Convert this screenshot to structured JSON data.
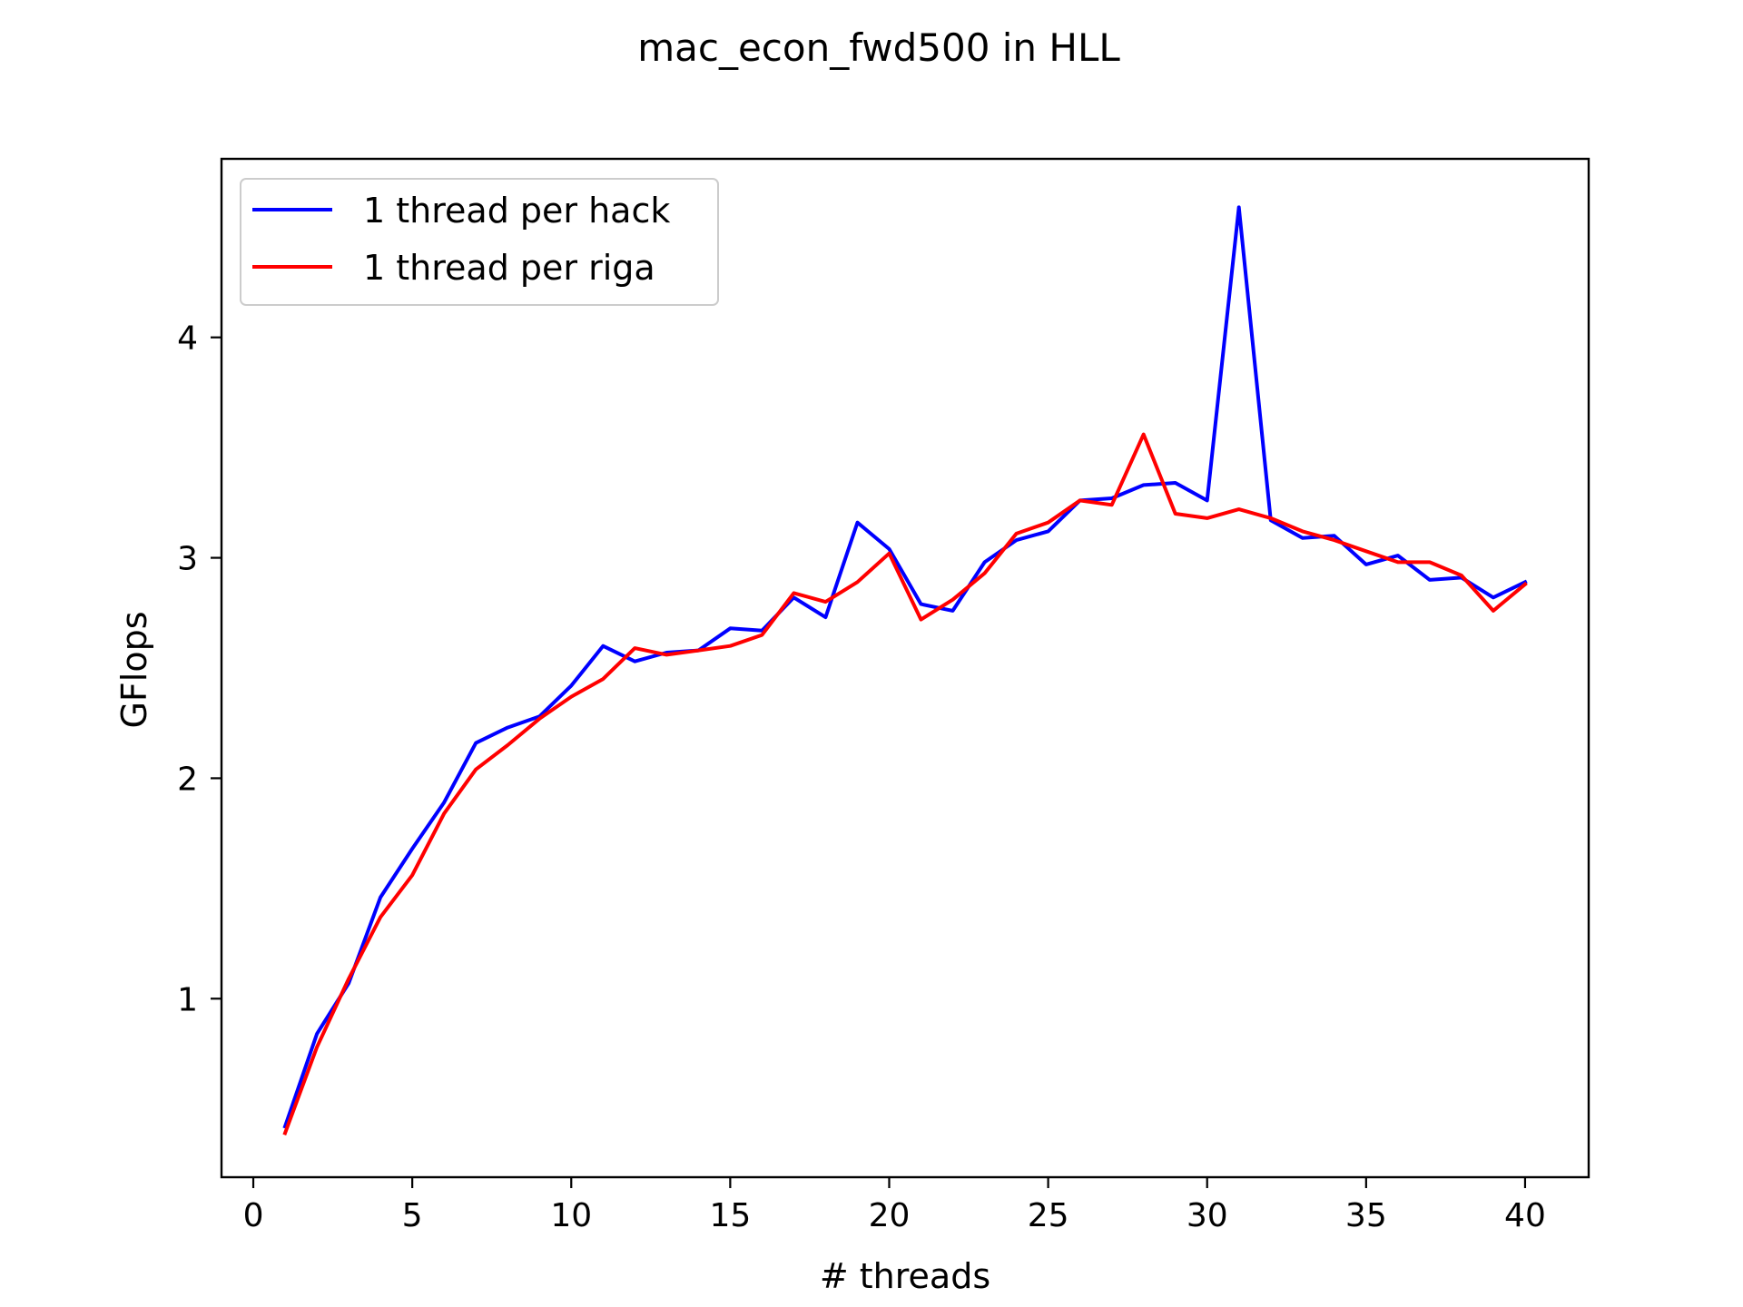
{
  "chart_data": {
    "type": "line",
    "title": "mac_econ_fwd500 in HLL",
    "xlabel": "# threads",
    "ylabel": "GFlops",
    "xlim": [
      -1,
      42
    ],
    "ylim": [
      0.19,
      4.81
    ],
    "xticks": [
      0,
      5,
      10,
      15,
      20,
      25,
      30,
      35,
      40
    ],
    "xtick_labels": [
      "0",
      "5",
      "10",
      "15",
      "20",
      "25",
      "30",
      "35",
      "40"
    ],
    "yticks": [
      1,
      2,
      3,
      4
    ],
    "ytick_labels": [
      "1",
      "2",
      "3",
      "4"
    ],
    "grid": false,
    "legend": "top-left",
    "x": [
      1,
      2,
      3,
      4,
      5,
      6,
      7,
      8,
      9,
      10,
      11,
      12,
      13,
      14,
      15,
      16,
      17,
      18,
      19,
      20,
      21,
      22,
      23,
      24,
      25,
      26,
      27,
      28,
      29,
      30,
      31,
      32,
      33,
      34,
      35,
      36,
      37,
      38,
      39,
      40
    ],
    "series": [
      {
        "name": "1 thread per hack",
        "color": "#0000ff",
        "values": [
          0.42,
          0.84,
          1.07,
          1.46,
          1.68,
          1.89,
          2.16,
          2.23,
          2.28,
          2.42,
          2.6,
          2.53,
          2.57,
          2.58,
          2.68,
          2.67,
          2.82,
          2.73,
          3.16,
          3.04,
          2.79,
          2.76,
          2.98,
          3.08,
          3.12,
          3.26,
          3.27,
          3.33,
          3.34,
          3.26,
          4.59,
          3.17,
          3.09,
          3.1,
          2.97,
          3.01,
          2.9,
          2.91,
          2.82,
          2.89
        ]
      },
      {
        "name": "1 thread per riga",
        "color": "#ff0000",
        "values": [
          0.39,
          0.78,
          1.09,
          1.37,
          1.56,
          1.84,
          2.04,
          2.15,
          2.27,
          2.37,
          2.45,
          2.59,
          2.56,
          2.58,
          2.6,
          2.65,
          2.84,
          2.8,
          2.89,
          3.02,
          2.72,
          2.81,
          2.93,
          3.11,
          3.16,
          3.26,
          3.24,
          3.56,
          3.2,
          3.18,
          3.22,
          3.18,
          3.12,
          3.08,
          3.03,
          2.98,
          2.98,
          2.92,
          2.76,
          2.88
        ]
      }
    ]
  }
}
